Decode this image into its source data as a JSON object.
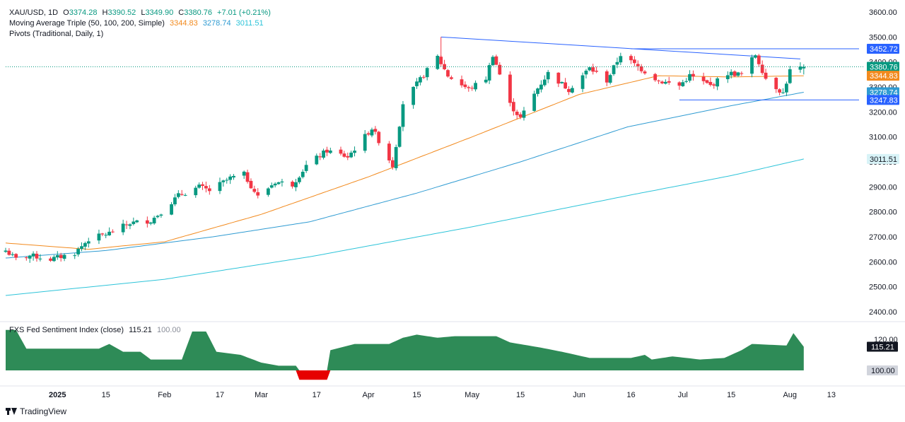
{
  "legend": {
    "symbol": "XAU/USD, 1D",
    "o_label": "O",
    "o_value": "3374.28",
    "h_label": "H",
    "h_value": "3390.52",
    "l_label": "L",
    "l_value": "3349.90",
    "c_label": "C",
    "c_value": "3380.76",
    "change": "+7.01 (+0.21%)",
    "ma_title": "Moving Average Triple (50, 100, 200, Simple)",
    "ma50": "3344.83",
    "ma100": "3278.74",
    "ma200": "3011.51",
    "pivots_title": "Pivots (Traditional, Daily, 1)",
    "fx_title": "FXS Fed Sentiment Index (close)",
    "fx_value": "115.21",
    "fx_base": "100.00"
  },
  "branding": {
    "logo_text": "TradingView"
  },
  "colors": {
    "up": "#089981",
    "down": "#f23645",
    "ma50": "#f28a1e",
    "ma100": "#2f9bd2",
    "ma200": "#2ec4d9",
    "trendline": "#2962ff",
    "sentiment_up": "#2e8b57",
    "sentiment_down": "#e60000"
  },
  "chart_data": [
    {
      "type": "candlestick",
      "title": "XAU/USD, 1D",
      "ylim": [
        2350,
        3640
      ],
      "y_ticks": [
        "3600.00",
        "3500.00",
        "3400.00",
        "3300.00",
        "3200.00",
        "3100.00",
        "3000.00",
        "2900.00",
        "2800.00",
        "2700.00",
        "2600.00",
        "2500.00",
        "2400.00"
      ],
      "x_ticks": [
        "2025",
        "15",
        "Feb",
        "17",
        "Mar",
        "17",
        "Apr",
        "15",
        "May",
        "15",
        "Jun",
        "16",
        "Jul",
        "15",
        "Aug",
        "13"
      ],
      "x_tick_dates": [
        "2025-01-01",
        "2025-01-15",
        "2025-02-01",
        "2025-02-17",
        "2025-03-01",
        "2025-03-17",
        "2025-04-01",
        "2025-04-15",
        "2025-05-01",
        "2025-05-15",
        "2025-06-01",
        "2025-06-16",
        "2025-07-01",
        "2025-07-15",
        "2025-08-01",
        "2025-08-13"
      ],
      "x_range": [
        "2024-12-17",
        "2025-08-21"
      ],
      "price_keypoints": [
        [
          "2024-12-17",
          2645
        ],
        [
          "2024-12-20",
          2610
        ],
        [
          "2024-12-24",
          2625
        ],
        [
          "2024-12-30",
          2610
        ],
        [
          "2025-01-06",
          2635
        ],
        [
          "2025-01-10",
          2690
        ],
        [
          "2025-01-16",
          2715
        ],
        [
          "2025-01-22",
          2755
        ],
        [
          "2025-01-28",
          2765
        ],
        [
          "2025-01-31",
          2800
        ],
        [
          "2025-02-05",
          2865
        ],
        [
          "2025-02-11",
          2900
        ],
        [
          "2025-02-14",
          2885
        ],
        [
          "2025-02-20",
          2935
        ],
        [
          "2025-02-24",
          2950
        ],
        [
          "2025-02-28",
          2860
        ],
        [
          "2025-03-05",
          2920
        ],
        [
          "2025-03-10",
          2910
        ],
        [
          "2025-03-14",
          2985
        ],
        [
          "2025-03-20",
          3045
        ],
        [
          "2025-03-26",
          3020
        ],
        [
          "2025-04-02",
          3135
        ],
        [
          "2025-04-08",
          2985
        ],
        [
          "2025-04-11",
          3235
        ],
        [
          "2025-04-16",
          3330
        ],
        [
          "2025-04-21",
          3420
        ],
        [
          "2025-04-24",
          3345
        ],
        [
          "2025-04-30",
          3290
        ],
        [
          "2025-05-05",
          3335
        ],
        [
          "2025-05-07",
          3430
        ],
        [
          "2025-05-12",
          3230
        ],
        [
          "2025-05-15",
          3175
        ],
        [
          "2025-05-20",
          3295
        ],
        [
          "2025-05-23",
          3355
        ],
        [
          "2025-05-29",
          3290
        ],
        [
          "2025-06-04",
          3375
        ],
        [
          "2025-06-09",
          3325
        ],
        [
          "2025-06-13",
          3430
        ],
        [
          "2025-06-17",
          3390
        ],
        [
          "2025-06-24",
          3325
        ],
        [
          "2025-06-30",
          3305
        ],
        [
          "2025-07-03",
          3345
        ],
        [
          "2025-07-09",
          3305
        ],
        [
          "2025-07-14",
          3355
        ],
        [
          "2025-07-18",
          3350
        ],
        [
          "2025-07-22",
          3430
        ],
        [
          "2025-07-25",
          3335
        ],
        [
          "2025-07-30",
          3275
        ],
        [
          "2025-08-01",
          3365
        ],
        [
          "2025-08-05",
          3380.76
        ]
      ],
      "last_candle": {
        "date": "2025-08-05",
        "open": 3374.28,
        "high": 3390.52,
        "low": 3349.9,
        "close": 3380.76
      },
      "moving_averages": [
        {
          "name": "SMA 50",
          "last": 3344.83,
          "keypoints": [
            [
              "2024-12-17",
              2675
            ],
            [
              "2025-01-10",
              2650
            ],
            [
              "2025-02-01",
              2680
            ],
            [
              "2025-03-01",
              2790
            ],
            [
              "2025-04-01",
              2940
            ],
            [
              "2025-05-01",
              3100
            ],
            [
              "2025-06-01",
              3270
            ],
            [
              "2025-06-24",
              3345
            ],
            [
              "2025-07-15",
              3340
            ],
            [
              "2025-08-05",
              3344.83
            ]
          ]
        },
        {
          "name": "SMA 100",
          "last": 3278.74,
          "keypoints": [
            [
              "2024-12-17",
              2615
            ],
            [
              "2025-01-15",
              2645
            ],
            [
              "2025-02-15",
              2700
            ],
            [
              "2025-03-15",
              2760
            ],
            [
              "2025-04-15",
              2875
            ],
            [
              "2025-05-15",
              3000
            ],
            [
              "2025-06-15",
              3140
            ],
            [
              "2025-07-15",
              3225
            ],
            [
              "2025-08-05",
              3278.74
            ]
          ]
        },
        {
          "name": "SMA 200",
          "last": 3011.51,
          "keypoints": [
            [
              "2024-12-17",
              2465
            ],
            [
              "2025-02-01",
              2530
            ],
            [
              "2025-03-15",
              2620
            ],
            [
              "2025-05-01",
              2740
            ],
            [
              "2025-06-15",
              2865
            ],
            [
              "2025-07-15",
              2945
            ],
            [
              "2025-08-05",
              3011.51
            ]
          ]
        }
      ],
      "pivot_levels": [
        3452.72,
        3247.83
      ],
      "trendlines": [
        {
          "from": [
            "2025-04-22",
            3500
          ],
          "to": [
            "2025-08-04",
            3412
          ]
        },
        {
          "from": [
            "2025-06-16",
            3452.72
          ],
          "to": [
            "2025-08-21",
            3452.72
          ]
        },
        {
          "from": [
            "2025-06-30",
            3247.83
          ],
          "to": [
            "2025-08-21",
            3247.83
          ]
        }
      ],
      "price_tags": [
        {
          "value": "3452.72",
          "color": "#2962ff"
        },
        {
          "value": "3380.76",
          "color": "#089981"
        },
        {
          "value": "3344.83",
          "color": "#f28a1e"
        },
        {
          "value": "3278.74",
          "color": "#2f9bd2"
        },
        {
          "value": "3247.83",
          "color": "#2962ff"
        },
        {
          "value": "3011.51",
          "color": "#2ec4d9",
          "text_color": "#131722"
        }
      ]
    },
    {
      "type": "area",
      "title": "FXS Fed Sentiment Index (close)",
      "baseline": 100,
      "ylim": [
        83,
        127
      ],
      "y_ticks": [
        "120.00"
      ],
      "keypoints": [
        [
          "2024-12-17",
          126
        ],
        [
          "2024-12-20",
          126
        ],
        [
          "2024-12-23",
          114
        ],
        [
          "2025-01-13",
          114
        ],
        [
          "2025-01-16",
          117
        ],
        [
          "2025-01-20",
          112
        ],
        [
          "2025-01-25",
          112
        ],
        [
          "2025-01-28",
          107
        ],
        [
          "2025-02-06",
          107
        ],
        [
          "2025-02-09",
          125
        ],
        [
          "2025-02-13",
          125
        ],
        [
          "2025-02-16",
          112
        ],
        [
          "2025-02-23",
          110
        ],
        [
          "2025-03-01",
          105
        ],
        [
          "2025-03-06",
          103
        ],
        [
          "2025-03-11",
          103
        ],
        [
          "2025-03-12",
          94
        ],
        [
          "2025-03-20",
          94
        ],
        [
          "2025-03-21",
          113
        ],
        [
          "2025-03-28",
          117
        ],
        [
          "2025-04-07",
          117
        ],
        [
          "2025-04-11",
          121
        ],
        [
          "2025-04-15",
          123
        ],
        [
          "2025-04-21",
          121
        ],
        [
          "2025-04-26",
          122
        ],
        [
          "2025-05-08",
          122
        ],
        [
          "2025-05-12",
          118
        ],
        [
          "2025-05-20",
          115
        ],
        [
          "2025-05-27",
          112
        ],
        [
          "2025-06-04",
          108
        ],
        [
          "2025-06-16",
          108
        ],
        [
          "2025-06-20",
          110
        ],
        [
          "2025-06-22",
          107
        ],
        [
          "2025-06-28",
          109
        ],
        [
          "2025-07-06",
          107
        ],
        [
          "2025-07-13",
          108
        ],
        [
          "2025-07-18",
          113
        ],
        [
          "2025-07-21",
          117
        ],
        [
          "2025-07-31",
          116
        ],
        [
          "2025-08-02",
          124
        ],
        [
          "2025-08-05",
          115.21
        ]
      ],
      "price_tags": [
        {
          "value": "115.21",
          "color": "#131722"
        },
        {
          "value": "100.00",
          "color": "#d1d4dc",
          "text_color": "#131722"
        }
      ]
    }
  ]
}
